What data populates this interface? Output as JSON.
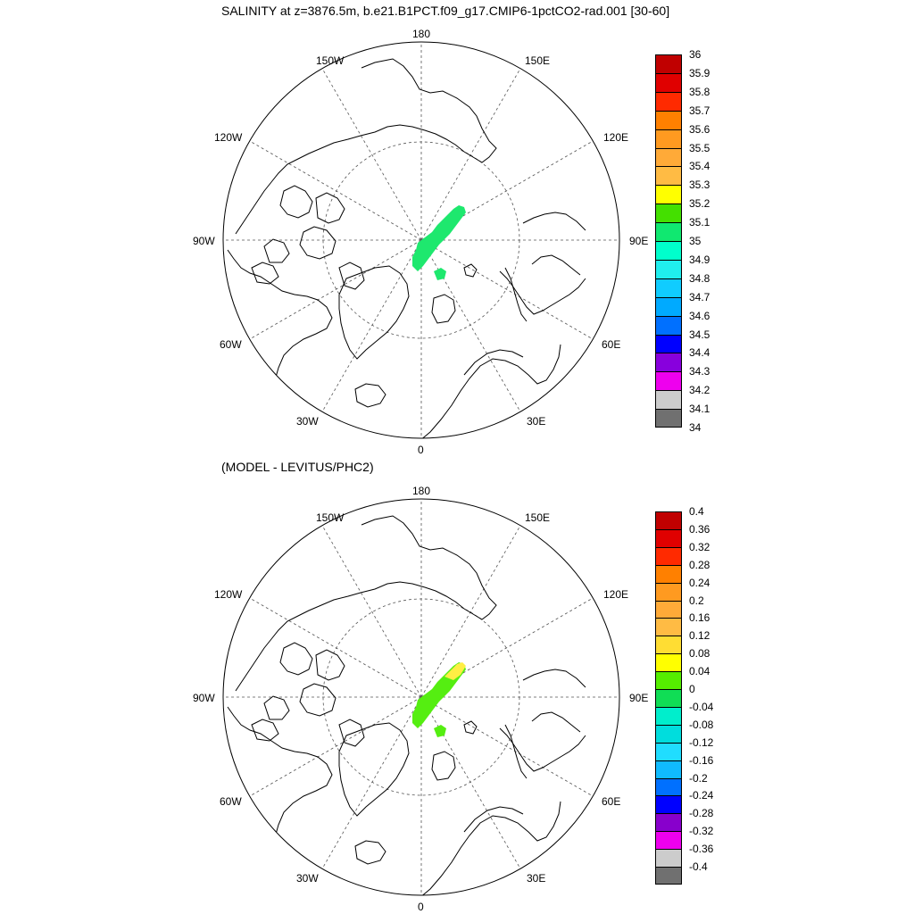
{
  "panels": [
    {
      "title": "SALINITY at z=3876.5m, b.e21.B1PCT.f09_g17.CMIP6-1pctCO2-rad.001 [30-60]",
      "longitude_labels": {
        "lon_180": "180",
        "lon_150w": "150W",
        "lon_150e": "150E",
        "lon_120w": "120W",
        "lon_120e": "120E",
        "lon_90w": "90W",
        "lon_90e": "90E",
        "lon_60w": "60W",
        "lon_60e": "60E",
        "lon_30w": "30W",
        "lon_30e": "30E",
        "lon_0": "0"
      },
      "field_color": "#1ee86e",
      "colorbar": {
        "colors": [
          "#c00000",
          "#e00000",
          "#ff2a00",
          "#ff8000",
          "#ff9a20",
          "#ffaa38",
          "#ffbb44",
          "#ffff00",
          "#44e000",
          "#10e870",
          "#00ffcc",
          "#20eeee",
          "#10ccff",
          "#00aaff",
          "#0070ff",
          "#0000ff",
          "#8800dd",
          "#ee00ee",
          "#cccccc",
          "#707070"
        ],
        "labels": [
          "36",
          "35.9",
          "35.8",
          "35.7",
          "35.6",
          "35.5",
          "35.4",
          "35.3",
          "35.2",
          "35.1",
          "35",
          "34.9",
          "34.8",
          "34.7",
          "34.6",
          "34.5",
          "34.4",
          "34.3",
          "34.2",
          "34.1",
          "34"
        ]
      }
    },
    {
      "title": "(MODEL - LEVITUS/PHC2)",
      "longitude_labels": {
        "lon_180": "180",
        "lon_150w": "150W",
        "lon_150e": "150E",
        "lon_120w": "120W",
        "lon_120e": "120E",
        "lon_90w": "90W",
        "lon_90e": "90E",
        "lon_60w": "60W",
        "lon_60e": "60E",
        "lon_30w": "30W",
        "lon_30e": "30E",
        "lon_0": "0"
      },
      "field_color": "#55ee11",
      "field_color_secondary": "#ffee44",
      "colorbar": {
        "colors": [
          "#c00000",
          "#e00000",
          "#ff2a00",
          "#ff8000",
          "#ff9a20",
          "#ffaa38",
          "#ffbb44",
          "#ffdd33",
          "#ffff00",
          "#55ee00",
          "#10dd55",
          "#00eecc",
          "#00dddd",
          "#20ddff",
          "#10bbff",
          "#0070ff",
          "#0000ff",
          "#8800cc",
          "#ee00ee",
          "#cccccc",
          "#707070"
        ],
        "labels": [
          "0.4",
          "0.36",
          "0.32",
          "0.28",
          "0.24",
          "0.2",
          "0.16",
          "0.12",
          "0.08",
          "0.04",
          "0",
          "-0.04",
          "-0.08",
          "-0.12",
          "-0.16",
          "-0.2",
          "-0.24",
          "-0.28",
          "-0.32",
          "-0.36",
          "-0.4"
        ]
      }
    }
  ]
}
